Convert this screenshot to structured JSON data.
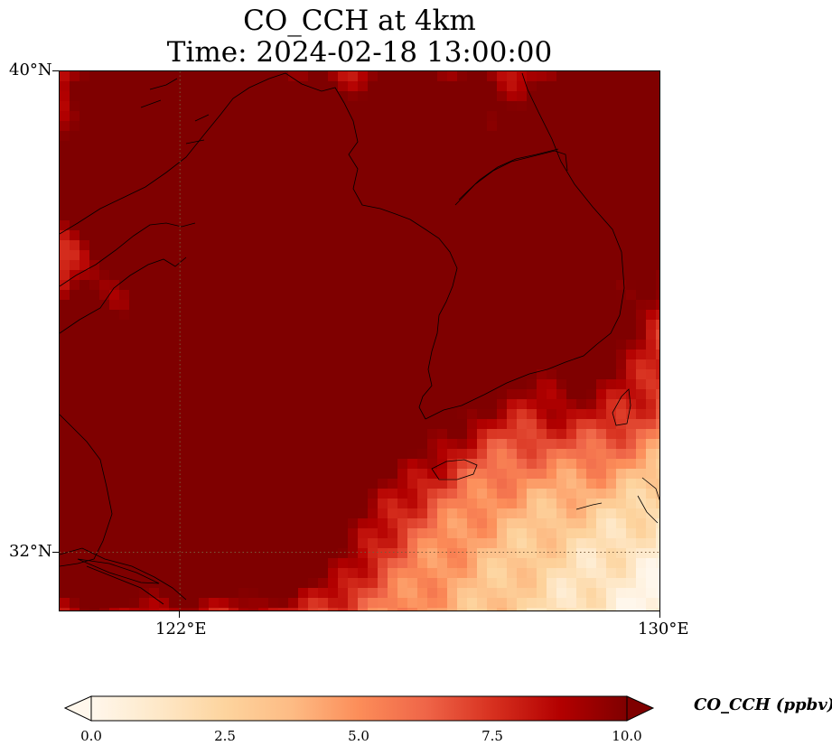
{
  "title": {
    "line1": "CO_CCH at 4km",
    "line2": "Time: 2024-02-18 13:00:00"
  },
  "map": {
    "variable": "CO_CCH",
    "level": "4km",
    "extent": {
      "lon_min": 120,
      "lon_max": 130,
      "lat_min": 31,
      "lat_max": 40
    },
    "gridlines": {
      "lon": [
        122
      ],
      "lat": [
        32
      ],
      "style": "dotted"
    },
    "lat_labels": [
      "40°N",
      "32°N"
    ],
    "lon_labels": [
      "122°E",
      "130°E"
    ],
    "coastlines": true
  },
  "colorbar": {
    "colormap": "OrRd",
    "vmin": 0.0,
    "vmax": 10.0,
    "extend": "both",
    "ticks": [
      "0.0",
      "2.5",
      "5.0",
      "7.5",
      "10.0"
    ],
    "label": "CO_CCH (ppbv)"
  }
}
